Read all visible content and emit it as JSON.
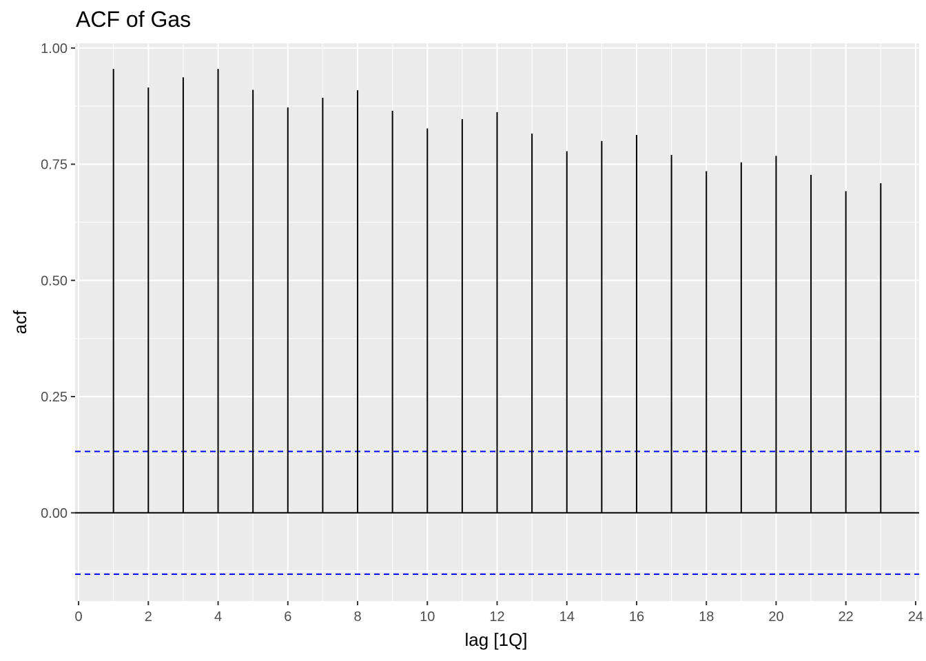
{
  "chart_data": {
    "type": "bar",
    "title": "ACF of Gas",
    "xlabel": "lag [1Q]",
    "ylabel": "acf",
    "x": [
      1,
      2,
      3,
      4,
      5,
      6,
      7,
      8,
      9,
      10,
      11,
      12,
      13,
      14,
      15,
      16,
      17,
      18,
      19,
      20,
      21,
      22,
      23
    ],
    "values": [
      0.955,
      0.915,
      0.937,
      0.955,
      0.91,
      0.872,
      0.893,
      0.909,
      0.865,
      0.827,
      0.847,
      0.862,
      0.816,
      0.778,
      0.8,
      0.813,
      0.77,
      0.735,
      0.754,
      0.768,
      0.727,
      0.692,
      0.709
    ],
    "confidence_bound": 0.132,
    "xlim": [
      -0.1,
      24.1
    ],
    "ylim": [
      -0.19,
      1.01
    ],
    "x_ticks": [
      0,
      2,
      4,
      6,
      8,
      10,
      12,
      14,
      16,
      18,
      20,
      22,
      24
    ],
    "x_tick_labels": [
      "0",
      "2",
      "4",
      "6",
      "8",
      "10",
      "12",
      "14",
      "16",
      "18",
      "20",
      "22",
      "24"
    ],
    "y_ticks": [
      0,
      0.25,
      0.5,
      0.75,
      1
    ],
    "y_tick_labels": [
      "0.00",
      "0.25",
      "0.50",
      "0.75",
      "1.00"
    ],
    "grid": true,
    "colors": {
      "panel": "#ebebeb",
      "grid": "#ffffff",
      "spike": "#000000",
      "bound": "#0000ff",
      "tick_text": "#4d4d4d"
    }
  }
}
